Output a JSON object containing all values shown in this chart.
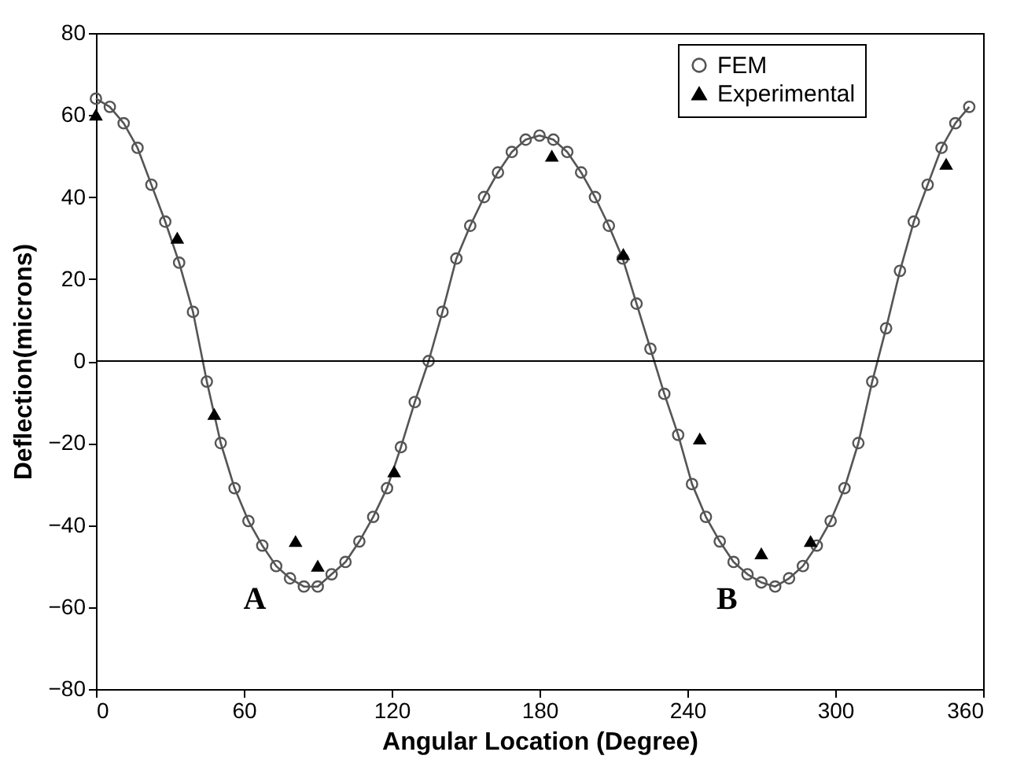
{
  "chart_data": {
    "type": "line",
    "xlabel": "Angular Location (Degree)",
    "ylabel": "Deflection(microns)",
    "xlim": [
      0,
      360
    ],
    "xticks": [
      0,
      60,
      120,
      180,
      240,
      300,
      360
    ],
    "ylim": [
      -80,
      80
    ],
    "yticks": [
      -80,
      -60,
      -40,
      -20,
      0,
      20,
      40,
      60,
      80
    ],
    "grid": false,
    "legend": "top right",
    "series": [
      {
        "name": "FEM",
        "type": "line",
        "marker": "circle",
        "color": "#555555",
        "x": [
          0,
          5.625,
          11.25,
          16.875,
          22.5,
          28.125,
          33.75,
          39.375,
          45,
          50.625,
          56.25,
          61.875,
          67.5,
          73.125,
          78.75,
          84.375,
          90,
          95.625,
          101.25,
          106.875,
          112.5,
          118.125,
          123.75,
          129.375,
          135,
          140.625,
          146.25,
          151.875,
          157.5,
          163.125,
          168.75,
          174.375,
          180,
          185.625,
          191.25,
          196.875,
          202.5,
          208.125,
          213.75,
          219.375,
          225,
          230.625,
          236.25,
          241.875,
          247.5,
          253.125,
          258.75,
          264.375,
          270,
          275.625,
          281.25,
          286.875,
          292.5,
          298.125,
          303.75,
          309.375,
          315,
          320.625,
          326.25,
          331.875,
          337.5,
          343.125,
          348.75,
          354.375
        ],
        "values": [
          64,
          62,
          58,
          52,
          43,
          34,
          24,
          12,
          -5,
          -20,
          -31,
          -39,
          -45,
          -50,
          -53,
          -55,
          -55,
          -52,
          -49,
          -44,
          -38,
          -31,
          -21,
          -10,
          0,
          12,
          25,
          33,
          40,
          46,
          51,
          54,
          55,
          54,
          51,
          46,
          40,
          33,
          25,
          14,
          3,
          -8,
          -18,
          -30,
          -38,
          -44,
          -49,
          -52,
          -54,
          -55,
          -53,
          -50,
          -45,
          -39,
          -31,
          -20,
          -5,
          8,
          22,
          34,
          43,
          52,
          58,
          62
        ]
      },
      {
        "name": "Experimental",
        "type": "scatter",
        "marker": "triangle",
        "color": "#000000",
        "x": [
          0,
          33,
          48,
          81,
          90,
          121,
          185,
          214,
          245,
          270,
          290,
          345
        ],
        "values": [
          60,
          30,
          -13,
          -44,
          -50,
          -27,
          50,
          26,
          -19,
          -47,
          -44,
          48
        ]
      }
    ],
    "ref_lines": [
      {
        "axis": "y",
        "value": 0,
        "color": "#000000"
      }
    ],
    "annotations": [
      {
        "text": "A",
        "x": 84.375,
        "y": -55
      },
      {
        "text": "B",
        "x": 275.625,
        "y": -55
      }
    ]
  }
}
